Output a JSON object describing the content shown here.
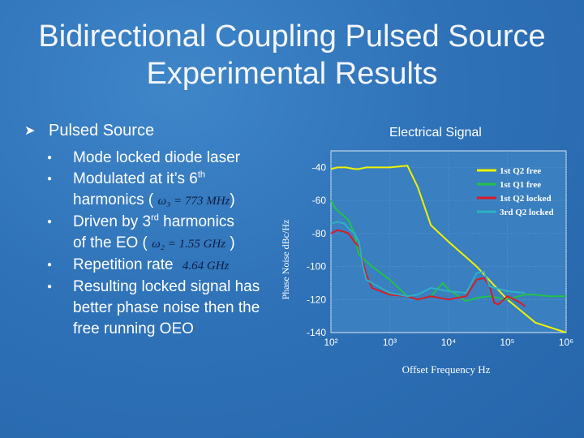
{
  "slide": {
    "title_line1": "Bidirectional Coupling Pulsed Source",
    "title_line2": "Experimental Results"
  },
  "bullets": {
    "main": "Pulsed Source",
    "items": [
      {
        "text": "Mode locked diode laser"
      },
      {
        "text_a": "Modulated at it’s 6",
        "sup": "th",
        "text_b": "harmonics (",
        "eq": "ω₃ = 773 MHz",
        "close": ")"
      },
      {
        "text_a": "Driven by 3",
        "sup": "rd",
        "text_b": " harmonics",
        "text_c": "of the EO (",
        "eq": "ω₂ = 1.55 GHz",
        "close": ")"
      },
      {
        "text": "Repetition rate",
        "eq": "4.64 GHz"
      },
      {
        "text": "Resulting locked signal has better phase noise then the free running OEO"
      }
    ]
  },
  "chart_data": {
    "type": "line",
    "title": "Electrical Signal",
    "xlabel": "Offset Frequency  Hz",
    "ylabel": "Phase Noise  dBc/Hz",
    "xscale": "log",
    "xlim": [
      100,
      1000000
    ],
    "ylim": [
      -140,
      -30
    ],
    "yticks": [
      "-40",
      "-60",
      "-80",
      "-100",
      "-120",
      "-140"
    ],
    "xticks": [
      "10²",
      "10³",
      "10⁴",
      "10⁵",
      "10⁶"
    ],
    "legend_position": "top-right",
    "colors": {
      "free2": "#eef200",
      "free1": "#22c24a",
      "locked2": "#d81b26",
      "locked1": "#2fb0c4"
    },
    "series": [
      {
        "name": "1st Q2 free",
        "color": "#eef200",
        "x": [
          100,
          130,
          180,
          250,
          300,
          400,
          600,
          1000,
          2000,
          3000,
          5000,
          10000,
          30000,
          100000,
          300000,
          1000000
        ],
        "y": [
          -41,
          -40,
          -40,
          -41,
          -41,
          -40,
          -40,
          -40,
          -39,
          -52,
          -75,
          -85,
          -100,
          -120,
          -134,
          -140
        ]
      },
      {
        "name": "1st Q1 free",
        "color": "#22c24a",
        "x": [
          100,
          120,
          150,
          200,
          250,
          300,
          500,
          1000,
          2000,
          3000,
          5000,
          8000,
          10000,
          20000,
          30000,
          50000,
          100000,
          200000,
          300000,
          500000,
          1000000
        ],
        "y": [
          -60,
          -65,
          -68,
          -72,
          -80,
          -93,
          -100,
          -108,
          -118,
          -120,
          -118,
          -110,
          -114,
          -121,
          -119,
          -118,
          -120,
          -117,
          -117,
          -118,
          -118
        ]
      },
      {
        "name": "1st Q2 locked",
        "color": "#d81b26",
        "x": [
          100,
          130,
          170,
          200,
          250,
          300,
          400,
          500,
          1000,
          2000,
          3000,
          5000,
          10000,
          20000,
          30000,
          40000,
          50000,
          60000,
          70000,
          100000,
          150000,
          200000
        ],
        "y": [
          -80,
          -78,
          -79,
          -80,
          -85,
          -88,
          -105,
          -113,
          -117,
          -118,
          -120,
          -118,
          -120,
          -118,
          -108,
          -107,
          -112,
          -122,
          -123,
          -118,
          -121,
          -124
        ]
      },
      {
        "name": "3rd Q2 locked",
        "color": "#2fb0c4",
        "x": [
          100,
          130,
          170,
          200,
          250,
          300,
          350,
          400,
          500,
          1000,
          2000,
          3000,
          5000,
          10000,
          20000,
          30000,
          40000,
          50000,
          100000,
          200000
        ],
        "y": [
          -74,
          -73,
          -74,
          -77,
          -80,
          -85,
          -100,
          -108,
          -110,
          -116,
          -118,
          -117,
          -113,
          -115,
          -116,
          -104,
          -103,
          -112,
          -115,
          -116
        ]
      }
    ]
  }
}
